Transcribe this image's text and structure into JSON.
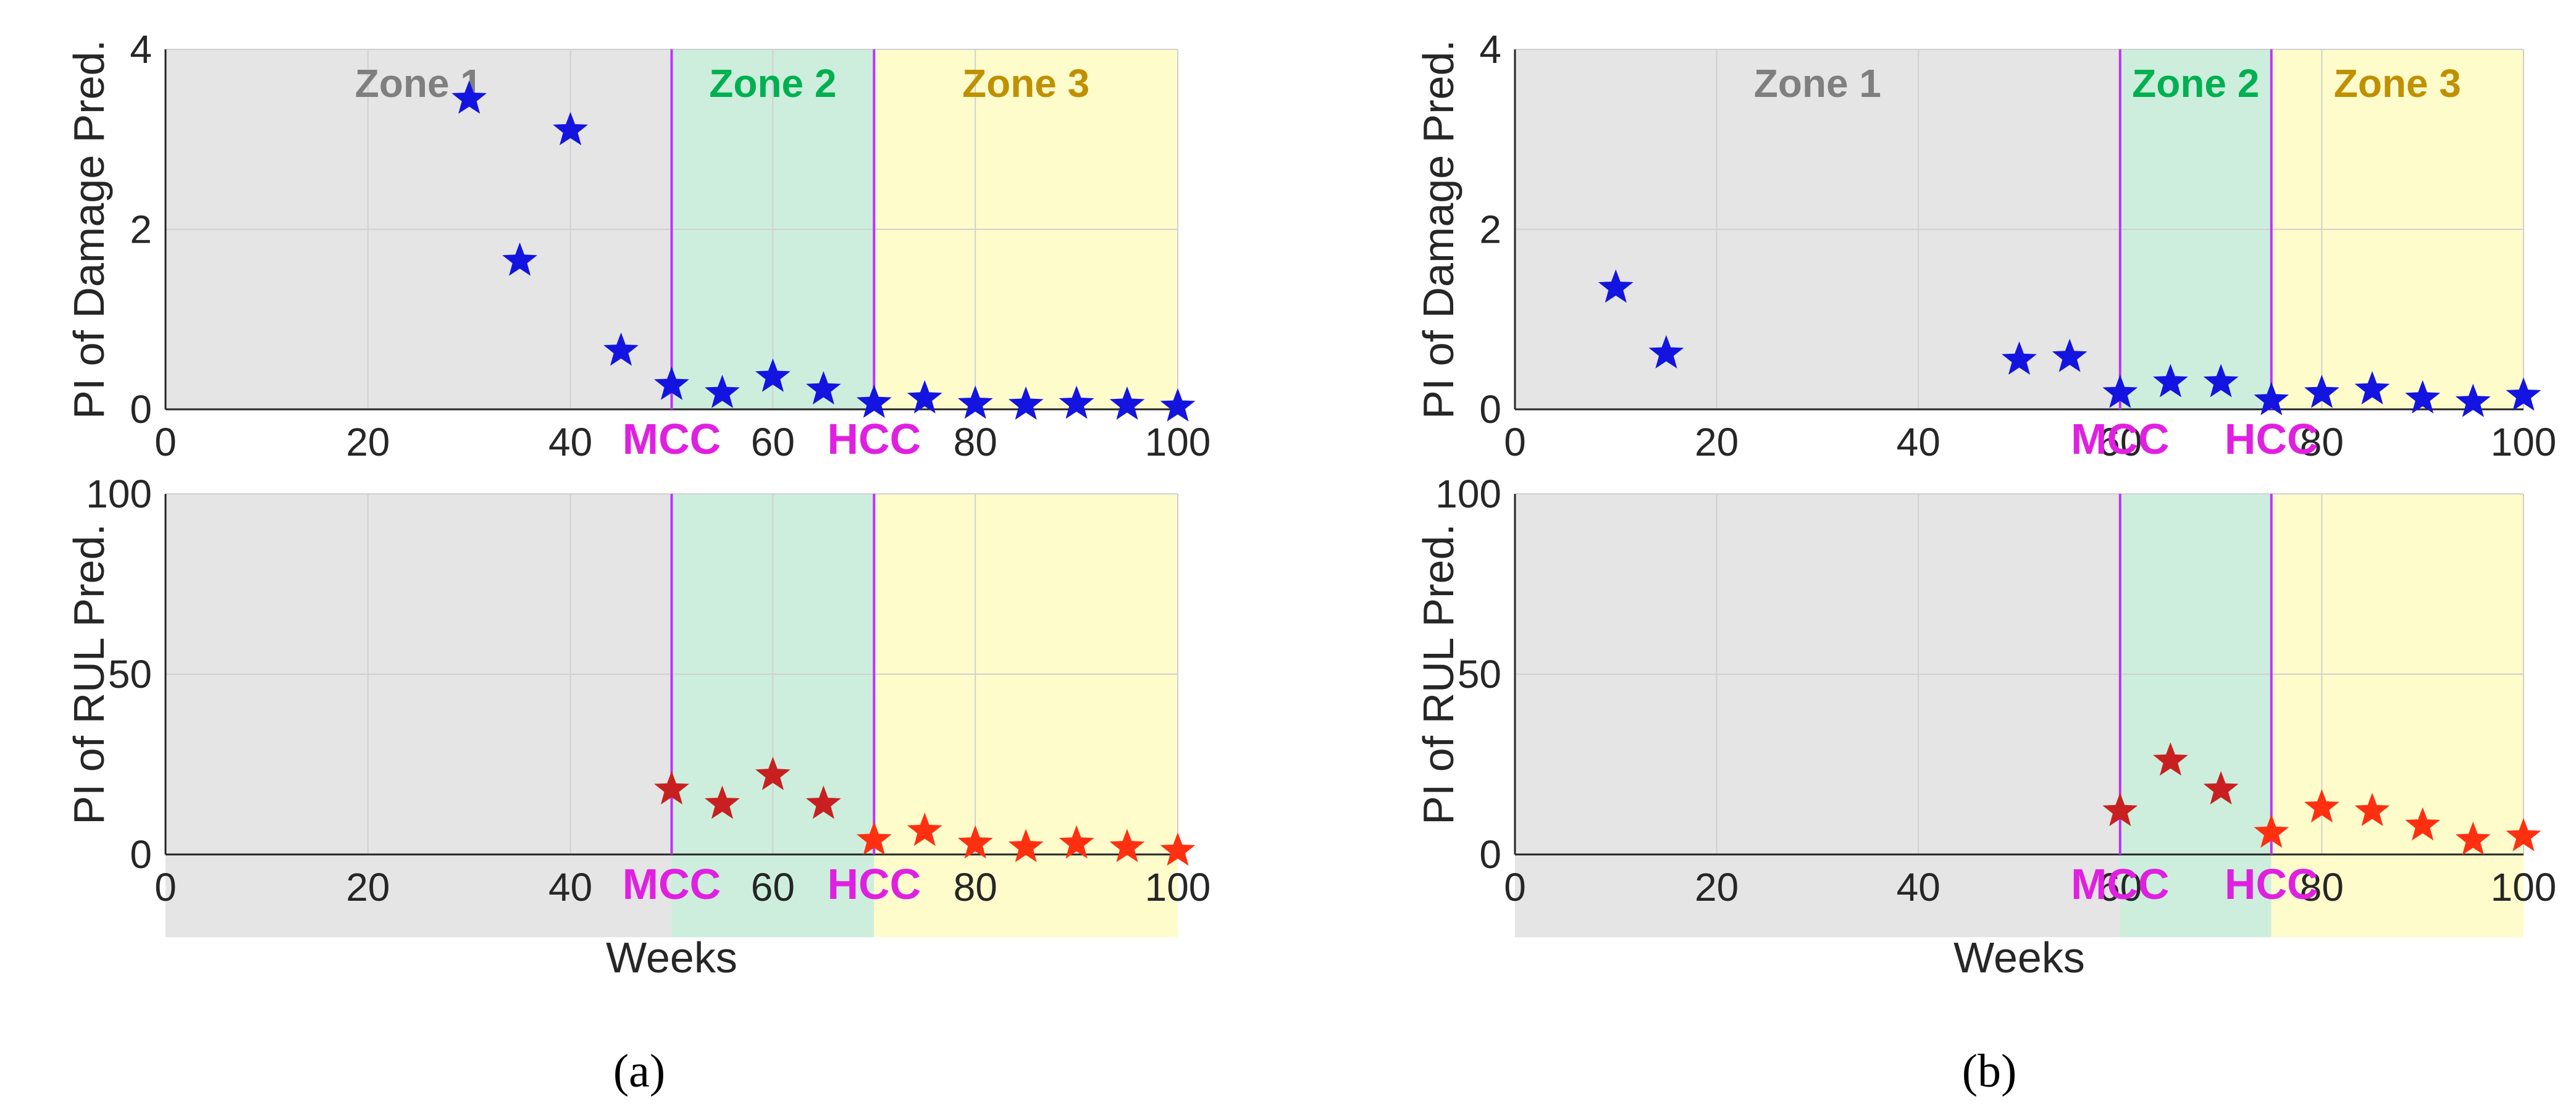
{
  "colors": {
    "zone1": "#e5e5e5",
    "zone2": "#cdeedd",
    "zone3": "#fffccc",
    "zone1_text": "#7f7f7f",
    "zone2_text": "#00b050",
    "zone3_text": "#bf9000",
    "marker_line": "#c030ff",
    "marker_text": "#e020e0",
    "damage_star": "#1414e0",
    "rul_star_early": "#c82020",
    "rul_star_late": "#ff3010",
    "grid": "#d0d0d0",
    "axis": "#262626"
  },
  "chart_data": [
    {
      "type": "scatter",
      "panel": "a",
      "subplot": "top",
      "ylabel": "PI of Damage Pred.",
      "xlim": [
        0,
        100
      ],
      "ylim": [
        0,
        4
      ],
      "xticks": [
        "0",
        "20",
        "40",
        "60",
        "80",
        "100"
      ],
      "yticks": [
        "0",
        "2",
        "4"
      ],
      "zones": [
        {
          "label": "Zone 1",
          "from": 0,
          "to": 50
        },
        {
          "label": "Zone 2",
          "from": 50,
          "to": 70
        },
        {
          "label": "Zone 3",
          "from": 70,
          "to": 100
        }
      ],
      "markers": [
        {
          "label": "MCC",
          "x": 50
        },
        {
          "label": "HCC",
          "x": 70
        }
      ],
      "x": [
        30,
        35,
        40,
        45,
        50,
        55,
        60,
        65,
        70,
        75,
        80,
        85,
        90,
        95,
        100
      ],
      "y": [
        3.45,
        1.65,
        3.1,
        0.65,
        0.27,
        0.18,
        0.36,
        0.22,
        0.07,
        0.12,
        0.06,
        0.05,
        0.06,
        0.05,
        0.03
      ]
    },
    {
      "type": "scatter",
      "panel": "a",
      "subplot": "bottom",
      "ylabel": "PI of RUL Pred.",
      "xlabel": "Weeks",
      "xlim": [
        0,
        100
      ],
      "ylim": [
        0,
        100
      ],
      "xticks": [
        "0",
        "20",
        "40",
        "60",
        "80",
        "100"
      ],
      "yticks": [
        "0",
        "50",
        "100"
      ],
      "markers": [
        {
          "label": "MCC",
          "x": 50
        },
        {
          "label": "HCC",
          "x": 70
        }
      ],
      "x": [
        50,
        55,
        60,
        65,
        70,
        75,
        80,
        85,
        90,
        95,
        100
      ],
      "y": [
        18,
        14,
        22,
        14,
        4,
        6.5,
        3,
        2,
        3,
        2,
        1
      ]
    },
    {
      "type": "scatter",
      "panel": "b",
      "subplot": "top",
      "ylabel": "PI of Damage Pred.",
      "xlim": [
        0,
        100
      ],
      "ylim": [
        0,
        4
      ],
      "xticks": [
        "0",
        "20",
        "40",
        "60",
        "80",
        "100"
      ],
      "yticks": [
        "0",
        "2",
        "4"
      ],
      "zones": [
        {
          "label": "Zone 1",
          "from": 0,
          "to": 60
        },
        {
          "label": "Zone 2",
          "from": 60,
          "to": 75
        },
        {
          "label": "Zone 3",
          "from": 75,
          "to": 100
        }
      ],
      "markers": [
        {
          "label": "MCC",
          "x": 60
        },
        {
          "label": "HCC",
          "x": 75
        }
      ],
      "x": [
        10,
        15,
        50,
        55,
        60,
        65,
        70,
        75,
        80,
        85,
        90,
        95,
        100
      ],
      "y": [
        1.35,
        0.62,
        0.55,
        0.58,
        0.18,
        0.3,
        0.3,
        0.1,
        0.18,
        0.22,
        0.12,
        0.08,
        0.15
      ]
    },
    {
      "type": "scatter",
      "panel": "b",
      "subplot": "bottom",
      "ylabel": "PI of RUL Pred.",
      "xlabel": "Weeks",
      "xlim": [
        0,
        100
      ],
      "ylim": [
        0,
        100
      ],
      "xticks": [
        "0",
        "20",
        "40",
        "60",
        "80",
        "100"
      ],
      "yticks": [
        "0",
        "50",
        "100"
      ],
      "markers": [
        {
          "label": "MCC",
          "x": 60
        },
        {
          "label": "HCC",
          "x": 75
        }
      ],
      "x": [
        60,
        65,
        70,
        75,
        80,
        85,
        90,
        95,
        100
      ],
      "y": [
        12,
        26,
        18,
        6,
        13,
        12,
        8,
        4,
        5
      ]
    }
  ],
  "captions": [
    "(a)",
    "(b)"
  ]
}
